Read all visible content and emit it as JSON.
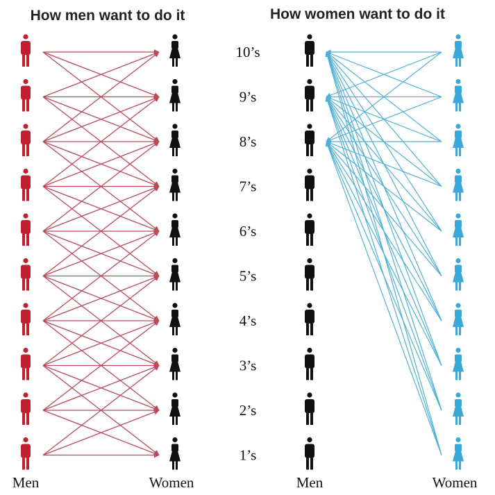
{
  "titles": {
    "left": "How men want to do it",
    "right": "How women want to do it"
  },
  "ranks": [
    "10’s",
    "9’s",
    "8’s",
    "7’s",
    "6’s",
    "5’s",
    "4’s",
    "3’s",
    "2’s",
    "1’s"
  ],
  "labels": {
    "left_men": "Men",
    "left_women": "Women",
    "right_men": "Men",
    "right_women": "Women"
  },
  "colors": {
    "left_men_figure": "#c0202f",
    "left_women_figure": "#111111",
    "left_arrows": "#b84a5a",
    "right_men_figure": "#111111",
    "right_women_figure": "#3aa8d8",
    "right_arrows": "#4fb0d5"
  },
  "links": {
    "left_offsets": [
      -2,
      -1,
      0,
      1,
      2
    ],
    "right_men_targets": [
      0,
      1,
      2
    ]
  }
}
